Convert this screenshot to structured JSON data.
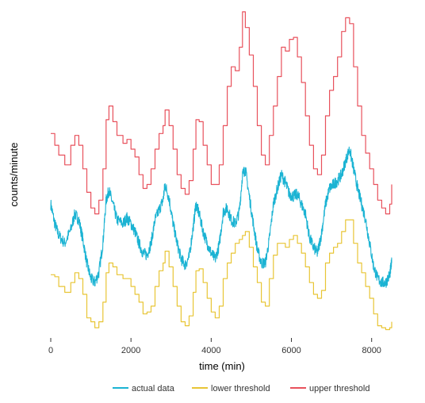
{
  "chart_data": {
    "type": "line",
    "xlabel": "time (min)",
    "ylabel": "counts/minute",
    "xlim": [
      0,
      8500
    ],
    "x_ticks": [
      0,
      2000,
      4000,
      6000,
      8000
    ],
    "y_ticks_shown": false,
    "grid": false,
    "legend_position": "bottom",
    "series": [
      {
        "name": "actual data",
        "color": "#1BB3D3",
        "points": [
          [
            0,
            0.6
          ],
          [
            100,
            0.5
          ],
          [
            200,
            0.44
          ],
          [
            350,
            0.4
          ],
          [
            500,
            0.47
          ],
          [
            600,
            0.55
          ],
          [
            700,
            0.52
          ],
          [
            800,
            0.42
          ],
          [
            900,
            0.3
          ],
          [
            1000,
            0.22
          ],
          [
            1100,
            0.2
          ],
          [
            1200,
            0.25
          ],
          [
            1300,
            0.4
          ],
          [
            1380,
            0.62
          ],
          [
            1450,
            0.67
          ],
          [
            1550,
            0.6
          ],
          [
            1650,
            0.52
          ],
          [
            1800,
            0.5
          ],
          [
            1900,
            0.53
          ],
          [
            2000,
            0.5
          ],
          [
            2100,
            0.46
          ],
          [
            2200,
            0.4
          ],
          [
            2300,
            0.35
          ],
          [
            2400,
            0.34
          ],
          [
            2500,
            0.4
          ],
          [
            2600,
            0.52
          ],
          [
            2700,
            0.57
          ],
          [
            2800,
            0.62
          ],
          [
            2850,
            0.7
          ],
          [
            2950,
            0.63
          ],
          [
            3050,
            0.5
          ],
          [
            3150,
            0.4
          ],
          [
            3250,
            0.32
          ],
          [
            3350,
            0.29
          ],
          [
            3450,
            0.33
          ],
          [
            3550,
            0.48
          ],
          [
            3620,
            0.6
          ],
          [
            3700,
            0.55
          ],
          [
            3800,
            0.46
          ],
          [
            3900,
            0.4
          ],
          [
            4000,
            0.35
          ],
          [
            4100,
            0.32
          ],
          [
            4200,
            0.39
          ],
          [
            4300,
            0.56
          ],
          [
            4400,
            0.58
          ],
          [
            4500,
            0.52
          ],
          [
            4600,
            0.5
          ],
          [
            4700,
            0.56
          ],
          [
            4780,
            0.75
          ],
          [
            4850,
            0.78
          ],
          [
            4950,
            0.64
          ],
          [
            5050,
            0.5
          ],
          [
            5150,
            0.37
          ],
          [
            5250,
            0.3
          ],
          [
            5350,
            0.3
          ],
          [
            5450,
            0.42
          ],
          [
            5550,
            0.6
          ],
          [
            5650,
            0.68
          ],
          [
            5750,
            0.75
          ],
          [
            5850,
            0.71
          ],
          [
            5950,
            0.65
          ],
          [
            6050,
            0.64
          ],
          [
            6150,
            0.65
          ],
          [
            6250,
            0.6
          ],
          [
            6350,
            0.55
          ],
          [
            6450,
            0.43
          ],
          [
            6550,
            0.38
          ],
          [
            6650,
            0.35
          ],
          [
            6750,
            0.45
          ],
          [
            6850,
            0.6
          ],
          [
            6950,
            0.68
          ],
          [
            7050,
            0.7
          ],
          [
            7150,
            0.72
          ],
          [
            7250,
            0.75
          ],
          [
            7350,
            0.82
          ],
          [
            7450,
            0.88
          ],
          [
            7550,
            0.78
          ],
          [
            7650,
            0.68
          ],
          [
            7750,
            0.6
          ],
          [
            7850,
            0.52
          ],
          [
            7950,
            0.4
          ],
          [
            8050,
            0.28
          ],
          [
            8150,
            0.22
          ],
          [
            8250,
            0.2
          ],
          [
            8350,
            0.2
          ],
          [
            8450,
            0.24
          ],
          [
            8500,
            0.3
          ]
        ]
      },
      {
        "name": "lower threshold",
        "color": "#E8C535",
        "points": [
          [
            0,
            0.24
          ],
          [
            100,
            0.23
          ],
          [
            200,
            0.18
          ],
          [
            350,
            0.15
          ],
          [
            500,
            0.2
          ],
          [
            600,
            0.25
          ],
          [
            700,
            0.22
          ],
          [
            800,
            0.14
          ],
          [
            900,
            0.02
          ],
          [
            1000,
            0.0
          ],
          [
            1100,
            -0.03
          ],
          [
            1200,
            0.0
          ],
          [
            1300,
            0.1
          ],
          [
            1380,
            0.25
          ],
          [
            1450,
            0.3
          ],
          [
            1550,
            0.28
          ],
          [
            1650,
            0.24
          ],
          [
            1800,
            0.22
          ],
          [
            1900,
            0.22
          ],
          [
            2000,
            0.18
          ],
          [
            2100,
            0.14
          ],
          [
            2200,
            0.1
          ],
          [
            2300,
            0.04
          ],
          [
            2400,
            0.05
          ],
          [
            2500,
            0.08
          ],
          [
            2600,
            0.18
          ],
          [
            2700,
            0.26
          ],
          [
            2800,
            0.3
          ],
          [
            2850,
            0.36
          ],
          [
            2950,
            0.28
          ],
          [
            3050,
            0.18
          ],
          [
            3150,
            0.08
          ],
          [
            3250,
            0.0
          ],
          [
            3350,
            -0.02
          ],
          [
            3450,
            0.03
          ],
          [
            3550,
            0.15
          ],
          [
            3620,
            0.26
          ],
          [
            3700,
            0.27
          ],
          [
            3800,
            0.2
          ],
          [
            3900,
            0.12
          ],
          [
            4000,
            0.05
          ],
          [
            4100,
            0.02
          ],
          [
            4200,
            0.08
          ],
          [
            4300,
            0.22
          ],
          [
            4400,
            0.3
          ],
          [
            4500,
            0.35
          ],
          [
            4600,
            0.4
          ],
          [
            4700,
            0.42
          ],
          [
            4780,
            0.44
          ],
          [
            4850,
            0.46
          ],
          [
            4950,
            0.38
          ],
          [
            5050,
            0.28
          ],
          [
            5150,
            0.2
          ],
          [
            5250,
            0.1
          ],
          [
            5350,
            0.08
          ],
          [
            5450,
            0.22
          ],
          [
            5550,
            0.34
          ],
          [
            5650,
            0.4
          ],
          [
            5750,
            0.4
          ],
          [
            5850,
            0.38
          ],
          [
            5950,
            0.42
          ],
          [
            6050,
            0.44
          ],
          [
            6150,
            0.4
          ],
          [
            6250,
            0.35
          ],
          [
            6350,
            0.28
          ],
          [
            6450,
            0.2
          ],
          [
            6550,
            0.14
          ],
          [
            6650,
            0.12
          ],
          [
            6750,
            0.16
          ],
          [
            6850,
            0.3
          ],
          [
            6950,
            0.35
          ],
          [
            7050,
            0.38
          ],
          [
            7150,
            0.4
          ],
          [
            7250,
            0.46
          ],
          [
            7350,
            0.52
          ],
          [
            7450,
            0.52
          ],
          [
            7550,
            0.4
          ],
          [
            7650,
            0.3
          ],
          [
            7750,
            0.25
          ],
          [
            7850,
            0.18
          ],
          [
            7950,
            0.12
          ],
          [
            8050,
            0.04
          ],
          [
            8150,
            -0.02
          ],
          [
            8250,
            -0.03
          ],
          [
            8350,
            -0.04
          ],
          [
            8450,
            -0.03
          ],
          [
            8500,
            0.0
          ]
        ]
      },
      {
        "name": "upper threshold",
        "color": "#E8515C",
        "points": [
          [
            0,
            0.96
          ],
          [
            100,
            0.9
          ],
          [
            200,
            0.85
          ],
          [
            350,
            0.8
          ],
          [
            500,
            0.9
          ],
          [
            600,
            0.95
          ],
          [
            700,
            0.9
          ],
          [
            800,
            0.78
          ],
          [
            900,
            0.66
          ],
          [
            1000,
            0.58
          ],
          [
            1100,
            0.55
          ],
          [
            1200,
            0.62
          ],
          [
            1300,
            0.78
          ],
          [
            1380,
            1.03
          ],
          [
            1450,
            1.1
          ],
          [
            1550,
            1.02
          ],
          [
            1650,
            0.95
          ],
          [
            1800,
            0.91
          ],
          [
            1900,
            0.93
          ],
          [
            2000,
            0.88
          ],
          [
            2100,
            0.84
          ],
          [
            2200,
            0.75
          ],
          [
            2300,
            0.68
          ],
          [
            2400,
            0.7
          ],
          [
            2500,
            0.78
          ],
          [
            2600,
            0.88
          ],
          [
            2700,
            0.96
          ],
          [
            2800,
            1.0
          ],
          [
            2850,
            1.08
          ],
          [
            2950,
            1.0
          ],
          [
            3050,
            0.88
          ],
          [
            3150,
            0.75
          ],
          [
            3250,
            0.68
          ],
          [
            3350,
            0.65
          ],
          [
            3450,
            0.72
          ],
          [
            3550,
            0.88
          ],
          [
            3620,
            1.03
          ],
          [
            3700,
            1.02
          ],
          [
            3800,
            0.9
          ],
          [
            3900,
            0.8
          ],
          [
            4000,
            0.7
          ],
          [
            4100,
            0.7
          ],
          [
            4200,
            0.8
          ],
          [
            4300,
            1.0
          ],
          [
            4400,
            1.2
          ],
          [
            4500,
            1.3
          ],
          [
            4600,
            1.28
          ],
          [
            4700,
            1.4
          ],
          [
            4780,
            1.58
          ],
          [
            4850,
            1.5
          ],
          [
            4950,
            1.36
          ],
          [
            5050,
            1.2
          ],
          [
            5150,
            1.0
          ],
          [
            5250,
            0.85
          ],
          [
            5350,
            0.8
          ],
          [
            5450,
            0.95
          ],
          [
            5550,
            1.1
          ],
          [
            5650,
            1.25
          ],
          [
            5750,
            1.4
          ],
          [
            5850,
            1.38
          ],
          [
            5950,
            1.44
          ],
          [
            6050,
            1.45
          ],
          [
            6150,
            1.35
          ],
          [
            6250,
            1.22
          ],
          [
            6350,
            1.05
          ],
          [
            6450,
            0.9
          ],
          [
            6550,
            0.78
          ],
          [
            6650,
            0.75
          ],
          [
            6750,
            0.85
          ],
          [
            6850,
            1.05
          ],
          [
            6950,
            1.18
          ],
          [
            7050,
            1.25
          ],
          [
            7150,
            1.35
          ],
          [
            7250,
            1.48
          ],
          [
            7350,
            1.55
          ],
          [
            7450,
            1.52
          ],
          [
            7550,
            1.3
          ],
          [
            7650,
            1.1
          ],
          [
            7750,
            0.95
          ],
          [
            7850,
            0.86
          ],
          [
            7950,
            0.78
          ],
          [
            8050,
            0.7
          ],
          [
            8150,
            0.62
          ],
          [
            8250,
            0.58
          ],
          [
            8350,
            0.55
          ],
          [
            8450,
            0.6
          ],
          [
            8500,
            0.7
          ]
        ]
      }
    ]
  }
}
